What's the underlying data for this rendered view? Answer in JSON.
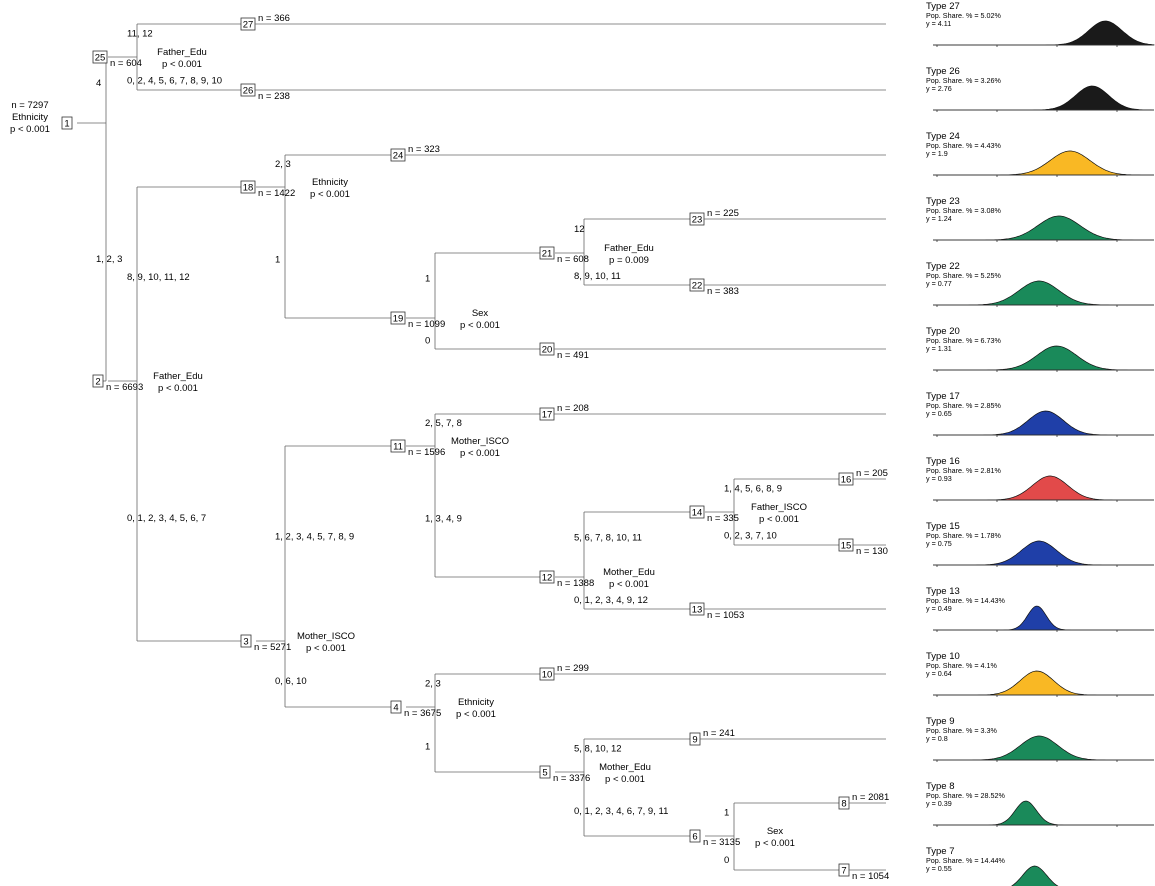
{
  "nodes": {
    "1": {
      "id": "1",
      "n": "n = 7297",
      "var": "Ethnicity",
      "p": "p < 0.001"
    },
    "25": {
      "id": "25",
      "n": "n = 604",
      "var": "Father_Edu",
      "p": "p < 0.001"
    },
    "27": {
      "id": "27",
      "n": "n = 366"
    },
    "26": {
      "id": "26",
      "n": "n = 238"
    },
    "2": {
      "id": "2",
      "n": "n = 6693",
      "var": "Father_Edu",
      "p": "p < 0.001"
    },
    "18": {
      "id": "18",
      "n": "n = 1422",
      "var": "Ethnicity",
      "p": "p < 0.001"
    },
    "24": {
      "id": "24",
      "n": "n = 323"
    },
    "19": {
      "id": "19",
      "n": "n = 1099",
      "var": "Sex",
      "p": "p < 0.001"
    },
    "21": {
      "id": "21",
      "n": "n = 608",
      "var": "Father_Edu",
      "p": "p = 0.009"
    },
    "23": {
      "id": "23",
      "n": "n = 225"
    },
    "22": {
      "id": "22",
      "n": "n = 383"
    },
    "20": {
      "id": "20",
      "n": "n = 491"
    },
    "3": {
      "id": "3",
      "n": "n = 5271",
      "var": "Mother_ISCO",
      "p": "p < 0.001"
    },
    "11": {
      "id": "11",
      "n": "n = 1596",
      "var": "Mother_ISCO",
      "p": "p < 0.001"
    },
    "17": {
      "id": "17",
      "n": "n = 208"
    },
    "12": {
      "id": "12",
      "n": "n = 1388",
      "var": "Mother_Edu",
      "p": "p < 0.001"
    },
    "14": {
      "id": "14",
      "n": "n = 335",
      "var": "Father_ISCO",
      "p": "p < 0.001"
    },
    "16": {
      "id": "16",
      "n": "n = 205"
    },
    "15": {
      "id": "15",
      "n": "n = 130"
    },
    "13": {
      "id": "13",
      "n": "n = 1053"
    },
    "4": {
      "id": "4",
      "n": "n = 3675",
      "var": "Ethnicity",
      "p": "p < 0.001"
    },
    "10": {
      "id": "10",
      "n": "n = 299"
    },
    "5": {
      "id": "5",
      "n": "n = 3376",
      "var": "Mother_Edu",
      "p": "p < 0.001"
    },
    "9": {
      "id": "9",
      "n": "n = 241"
    },
    "6": {
      "id": "6",
      "n": "n = 3135",
      "var": "Sex",
      "p": "p < 0.001"
    },
    "8": {
      "id": "8",
      "n": "n = 2081"
    },
    "7": {
      "id": "7",
      "n": "n = 1054"
    }
  },
  "edges": [
    {
      "from": "1",
      "to": "25",
      "label": "4"
    },
    {
      "from": "1",
      "to": "2",
      "label": "1, 2, 3"
    },
    {
      "from": "25",
      "to": "27",
      "label": "11, 12"
    },
    {
      "from": "25",
      "to": "26",
      "label": "0, 2, 4, 5, 6, 7, 8, 9, 10"
    },
    {
      "from": "2",
      "to": "18",
      "label": "8, 9, 10, 11, 12"
    },
    {
      "from": "2",
      "to": "3",
      "label": "0, 1, 2, 3, 4, 5, 6, 7"
    },
    {
      "from": "18",
      "to": "24",
      "label": "2, 3"
    },
    {
      "from": "18",
      "to": "19",
      "label": "1"
    },
    {
      "from": "19",
      "to": "21",
      "label": "1"
    },
    {
      "from": "19",
      "to": "20",
      "label": "0"
    },
    {
      "from": "21",
      "to": "23",
      "label": "12"
    },
    {
      "from": "21",
      "to": "22",
      "label": "8, 9, 10, 11"
    },
    {
      "from": "3",
      "to": "11",
      "label": "1, 2, 3, 4, 5, 7, 8, 9"
    },
    {
      "from": "3",
      "to": "4",
      "label": "0, 6, 10"
    },
    {
      "from": "11",
      "to": "17",
      "label": "2, 5, 7, 8"
    },
    {
      "from": "11",
      "to": "12",
      "label": "1, 3, 4, 9"
    },
    {
      "from": "12",
      "to": "14",
      "label": "5, 6, 7, 8, 10, 11"
    },
    {
      "from": "12",
      "to": "13",
      "label": "0, 1, 2, 3, 4, 9, 12"
    },
    {
      "from": "14",
      "to": "16",
      "label": "1, 4, 5, 6, 8, 9"
    },
    {
      "from": "14",
      "to": "15",
      "label": "0, 2, 3, 7, 10"
    },
    {
      "from": "4",
      "to": "10",
      "label": "2, 3"
    },
    {
      "from": "4",
      "to": "5",
      "label": "1"
    },
    {
      "from": "5",
      "to": "9",
      "label": "5, 8, 10, 12"
    },
    {
      "from": "5",
      "to": "6",
      "label": "0, 1, 2, 3, 4, 6, 7, 9, 11"
    },
    {
      "from": "6",
      "to": "8",
      "label": "1"
    },
    {
      "from": "6",
      "to": "7",
      "label": "0"
    }
  ],
  "terminals": [
    {
      "node": "27",
      "type": "Type 27",
      "share": "Pop. Share. % = 5.02%",
      "y": "y = 4.11",
      "color": "#1a1a1a",
      "mu": 0.78,
      "sd": 0.075
    },
    {
      "node": "26",
      "type": "Type 26",
      "share": "Pop. Share. % = 3.26%",
      "y": "y = 2.76",
      "color": "#1a1a1a",
      "mu": 0.72,
      "sd": 0.075
    },
    {
      "node": "24",
      "type": "Type 24",
      "share": "Pop. Share. % = 4.43%",
      "y": "y = 1.9",
      "color": "#f9b824",
      "mu": 0.62,
      "sd": 0.09
    },
    {
      "node": "23",
      "type": "Type 23",
      "share": "Pop. Share. % = 3.08%",
      "y": "y = 1.24",
      "color": "#1a8a5a",
      "mu": 0.57,
      "sd": 0.095
    },
    {
      "node": "22",
      "type": "Type 22",
      "share": "Pop. Share. % = 5.25%",
      "y": "y = 0.77",
      "color": "#1a8a5a",
      "mu": 0.48,
      "sd": 0.09
    },
    {
      "node": "20",
      "type": "Type 20",
      "share": "Pop. Share. % = 6.73%",
      "y": "y = 1.31",
      "color": "#1a8a5a",
      "mu": 0.56,
      "sd": 0.09
    },
    {
      "node": "17",
      "type": "Type 17",
      "share": "Pop. Share. % = 2.85%",
      "y": "y = 0.65",
      "color": "#1f3fa8",
      "mu": 0.51,
      "sd": 0.08
    },
    {
      "node": "16",
      "type": "Type 16",
      "share": "Pop. Share. % = 2.81%",
      "y": "y = 0.93",
      "color": "#e24a4a",
      "mu": 0.53,
      "sd": 0.08
    },
    {
      "node": "15",
      "type": "Type 15",
      "share": "Pop. Share. % = 1.78%",
      "y": "y = 0.75",
      "color": "#1f3fa8",
      "mu": 0.48,
      "sd": 0.08
    },
    {
      "node": "13",
      "type": "Type 13",
      "share": "Pop. Share. % = 14.43%",
      "y": "y = 0.49",
      "color": "#1f3fa8",
      "mu": 0.47,
      "sd": 0.042
    },
    {
      "node": "10",
      "type": "Type 10",
      "share": "Pop. Share. % = 4.1%",
      "y": "y = 0.64",
      "color": "#f9b824",
      "mu": 0.47,
      "sd": 0.075
    },
    {
      "node": "9",
      "type": "Type 9",
      "share": "Pop. Share. % = 3.3%",
      "y": "y = 0.8",
      "color": "#1a8a5a",
      "mu": 0.48,
      "sd": 0.085
    },
    {
      "node": "8",
      "type": "Type 8",
      "share": "Pop. Share. % = 28.52%",
      "y": "y = 0.39",
      "color": "#1a8a5a",
      "mu": 0.42,
      "sd": 0.048
    },
    {
      "node": "7",
      "type": "Type 7",
      "share": "Pop. Share. % = 14.44%",
      "y": "y = 0.55",
      "color": "#1a8a5a",
      "mu": 0.46,
      "sd": 0.055
    }
  ]
}
